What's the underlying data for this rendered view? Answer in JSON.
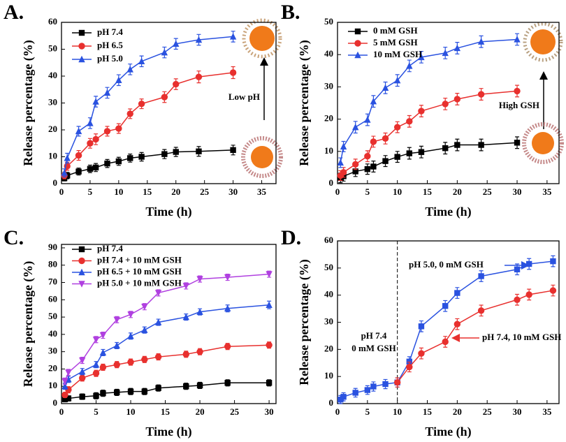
{
  "chart_data": [
    {
      "type": "line",
      "label": "A.",
      "xlabel": "Time (h)",
      "ylabel": "Release percentage (%)",
      "xlim": [
        0,
        37.5
      ],
      "ylim": [
        0,
        60
      ],
      "xticks": [
        0,
        5,
        10,
        15,
        20,
        25,
        30,
        35
      ],
      "yticks": [
        0,
        10,
        20,
        30,
        40,
        50,
        60
      ],
      "legend": "upper left",
      "x": [
        0.5,
        1,
        3,
        5,
        6,
        8,
        10,
        12,
        14,
        18,
        20,
        24,
        30
      ],
      "series": [
        {
          "name": "pH 7.4",
          "color": "#000000",
          "marker": "square",
          "values": [
            2,
            3,
            4.5,
            5.5,
            6,
            7.5,
            8.3,
            9.5,
            10,
            11,
            11.8,
            12,
            12.5
          ],
          "errors": [
            1,
            1.2,
            1.3,
            1.4,
            1.5,
            1.5,
            1.5,
            1.5,
            1.6,
            1.7,
            1.7,
            1.8,
            1.8
          ]
        },
        {
          "name": "pH 6.5",
          "color": "#e8302e",
          "marker": "circle",
          "values": [
            3,
            6.5,
            10.5,
            15,
            16.5,
            19.5,
            20.5,
            26,
            29.7,
            32.2,
            37,
            39.7,
            41.3
          ],
          "errors": [
            1.2,
            1.5,
            1.8,
            1.8,
            2,
            1.8,
            1.8,
            1.8,
            1.8,
            2,
            2,
            2.2,
            2.2
          ]
        },
        {
          "name": "pH 5.0",
          "color": "#2a52e0",
          "marker": "triangle-up",
          "values": [
            4,
            9.5,
            19.5,
            22.5,
            30.5,
            33.8,
            38.5,
            42.5,
            45.5,
            48.8,
            52,
            53.5,
            54.7
          ],
          "errors": [
            1.5,
            1.8,
            1.8,
            2,
            2,
            2,
            2,
            2,
            2,
            2,
            2,
            2,
            2
          ]
        }
      ],
      "annotations": [
        {
          "text": "Low pH"
        }
      ]
    },
    {
      "type": "line",
      "label": "B.",
      "xlabel": "Time (h)",
      "ylabel": "Release percentage (%)",
      "xlim": [
        0,
        37
      ],
      "ylim": [
        0,
        50
      ],
      "xticks": [
        0,
        5,
        10,
        15,
        20,
        25,
        30,
        35
      ],
      "yticks": [
        0,
        10,
        20,
        30,
        40,
        50
      ],
      "legend": "upper left",
      "x": [
        0.5,
        1,
        3,
        5,
        6,
        8,
        10,
        12,
        14,
        18,
        20,
        24,
        30
      ],
      "series": [
        {
          "name": "0 mM GSH",
          "color": "#000000",
          "marker": "square",
          "values": [
            1.8,
            2.3,
            3.8,
            4.5,
            5.3,
            7,
            8.3,
            9.4,
            9.8,
            11,
            12,
            12,
            12.7
          ],
          "errors": [
            1.5,
            1.5,
            1.6,
            1.6,
            1.7,
            1.7,
            1.7,
            1.8,
            1.8,
            1.8,
            1.8,
            1.8,
            1.8
          ]
        },
        {
          "name": "5 mM GSH",
          "color": "#e8302e",
          "marker": "circle",
          "values": [
            2.5,
            3.5,
            6,
            8.5,
            13,
            14,
            17.5,
            19.3,
            22.5,
            24.7,
            26.2,
            27.7,
            28.7
          ],
          "errors": [
            1.5,
            1.5,
            1.6,
            1.7,
            1.7,
            1.7,
            1.7,
            1.8,
            1.8,
            1.8,
            1.8,
            1.8,
            1.8
          ]
        },
        {
          "name": "10 mM GSH",
          "color": "#2a52e0",
          "marker": "triangle-up",
          "values": [
            6.5,
            11.5,
            17.5,
            19.8,
            25.5,
            29.7,
            32,
            36.5,
            39.2,
            40.5,
            42,
            44,
            44.7
          ],
          "errors": [
            1.5,
            1.6,
            1.8,
            1.8,
            1.8,
            1.8,
            1.8,
            1.8,
            1.8,
            1.8,
            1.8,
            1.8,
            1.8
          ]
        }
      ],
      "annotations": [
        {
          "text": "High GSH"
        }
      ]
    },
    {
      "type": "line",
      "label": "C.",
      "xlabel": "Time (h)",
      "ylabel": "Release percentage (%)",
      "xlim": [
        0,
        31
      ],
      "ylim": [
        0,
        92
      ],
      "xticks": [
        0,
        5,
        10,
        15,
        20,
        25,
        30
      ],
      "yticks": [
        0,
        10,
        20,
        30,
        40,
        50,
        60,
        70,
        80,
        90
      ],
      "legend": "upper left",
      "x": [
        0.5,
        1,
        3,
        5,
        6,
        8,
        10,
        12,
        14,
        18,
        20,
        24,
        30
      ],
      "series": [
        {
          "name": "pH 7.4",
          "color": "#000000",
          "marker": "square",
          "values": [
            2.5,
            3,
            4,
            4.5,
            6,
            6.5,
            7,
            7,
            9,
            10,
            10.5,
            12,
            12
          ],
          "errors": [
            1.5,
            1.5,
            1.6,
            1.8,
            1.8,
            1.8,
            1.8,
            1.8,
            1.8,
            1.8,
            1.8,
            1.8,
            1.8
          ]
        },
        {
          "name": "pH 7.4 + 10 mM GSH",
          "color": "#e8302e",
          "marker": "circle",
          "values": [
            5,
            8,
            14.8,
            17.5,
            21,
            22.5,
            24,
            25.5,
            27,
            28.5,
            30,
            33,
            33.8
          ],
          "errors": [
            1.5,
            1.8,
            1.8,
            1.8,
            1.8,
            1.8,
            1.8,
            1.8,
            1.8,
            1.8,
            1.8,
            1.8,
            1.8
          ]
        },
        {
          "name": "pH 6.5 + 10 mM GSH",
          "color": "#2a52e0",
          "marker": "triangle-up",
          "values": [
            10,
            14,
            18.5,
            22.5,
            29.5,
            33.5,
            39,
            42.5,
            47,
            50,
            53,
            55,
            57
          ],
          "errors": [
            1.8,
            1.8,
            1.8,
            1.8,
            1.8,
            1.8,
            1.8,
            1.8,
            1.8,
            1.8,
            1.8,
            2,
            2.2
          ]
        },
        {
          "name": "pH 5.0 + 10 mM GSH",
          "color": "#b040e0",
          "marker": "triangle-down",
          "values": [
            13,
            18,
            25,
            37,
            39.5,
            48.5,
            51.5,
            56,
            64,
            68,
            72,
            73,
            74.8
          ],
          "errors": [
            1.8,
            1.8,
            1.8,
            1.8,
            1.8,
            1.8,
            1.8,
            1.8,
            1.8,
            1.8,
            1.8,
            1.8,
            1.8
          ]
        }
      ]
    },
    {
      "type": "line",
      "label": "D.",
      "xlabel": "Time (h)",
      "ylabel": "Release percentage (%)",
      "xlim": [
        0,
        37
      ],
      "ylim": [
        0,
        60
      ],
      "xticks": [
        0,
        5,
        10,
        15,
        20,
        25,
        30,
        35
      ],
      "yticks": [
        0,
        10,
        20,
        30,
        40,
        50,
        60
      ],
      "vline": 10,
      "series": [
        {
          "color": "#2a52e0",
          "marker": "square",
          "x": [
            0.5,
            1,
            3,
            5,
            6,
            8,
            10,
            12,
            14,
            18,
            20,
            24,
            30,
            32,
            36
          ],
          "values": [
            1.5,
            2.5,
            4,
            5,
            6.3,
            7.2,
            7.8,
            15.5,
            28.5,
            36,
            40.8,
            47,
            49.5,
            51.5,
            52.5
          ],
          "errors": [
            1.5,
            1.5,
            1.6,
            1.6,
            1.7,
            1.7,
            1.7,
            1.8,
            2,
            2,
            2,
            2,
            2,
            2,
            2
          ]
        },
        {
          "color": "#e8302e",
          "marker": "circle",
          "x": [
            10,
            12,
            14,
            18,
            20,
            24,
            30,
            32,
            36
          ],
          "values": [
            7.8,
            13.5,
            18.5,
            22.8,
            29.3,
            34.3,
            38.3,
            40.2,
            41.7
          ],
          "errors": [
            1.7,
            1.8,
            2,
            2,
            2,
            2,
            2,
            2,
            2
          ]
        }
      ],
      "annotations": [
        {
          "text": "pH 7.4"
        },
        {
          "text": "0 mM GSH"
        },
        {
          "text": "pH 5.0, 0 mM GSH"
        },
        {
          "text": "pH 7.4, 10 mM GSH"
        }
      ]
    }
  ]
}
